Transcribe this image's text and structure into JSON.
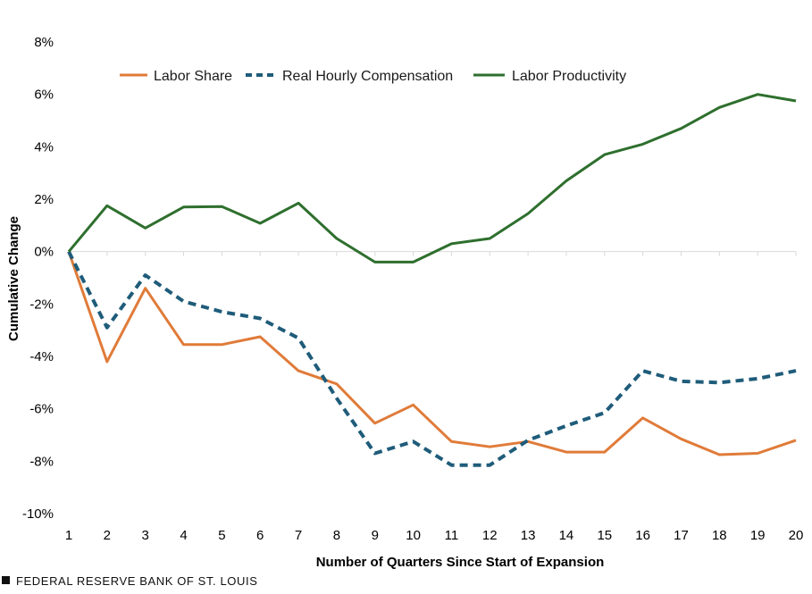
{
  "chart_data": {
    "type": "line",
    "title": "",
    "xlabel": "Number of Quarters Since Start of Expansion",
    "ylabel": "Cumulative Change",
    "categories": [
      1,
      2,
      3,
      4,
      5,
      6,
      7,
      8,
      9,
      10,
      11,
      12,
      13,
      14,
      15,
      16,
      17,
      18,
      19,
      20
    ],
    "x_tick_labels": [
      "1",
      "2",
      "3",
      "4",
      "5",
      "6",
      "7",
      "8",
      "9",
      "10",
      "11",
      "12",
      "13",
      "14",
      "15",
      "16",
      "17",
      "18",
      "19",
      "20"
    ],
    "ylim": [
      -10,
      8
    ],
    "y_ticks": [
      8,
      6,
      4,
      2,
      0,
      -2,
      -4,
      -6,
      -8,
      -10
    ],
    "y_tick_labels": [
      "8%",
      "6%",
      "4%",
      "2%",
      "0%",
      "-2%",
      "-4%",
      "-6%",
      "-8%",
      "-10%"
    ],
    "grid": false,
    "legend_position": "top-left",
    "series": [
      {
        "name": "Labor Share",
        "color": "#e07b39",
        "dash": "solid",
        "values": [
          0.0,
          -4.2,
          -1.4,
          -3.55,
          -3.55,
          -3.25,
          -4.55,
          -5.05,
          -6.55,
          -5.85,
          -7.25,
          -7.45,
          -7.25,
          -7.65,
          -7.65,
          -6.35,
          -7.15,
          -7.75,
          -7.7,
          -7.2
        ]
      },
      {
        "name": "Real Hourly Compensation",
        "color": "#1f5c7a",
        "dash": "dashed",
        "values": [
          0.0,
          -2.9,
          -0.9,
          -1.9,
          -2.3,
          -2.55,
          -3.3,
          -5.6,
          -7.7,
          -7.25,
          -8.15,
          -8.15,
          -7.2,
          -6.65,
          -6.15,
          -4.55,
          -4.95,
          -5.0,
          -4.85,
          -4.55
        ]
      },
      {
        "name": "Labor Productivity",
        "color": "#2e6f2e",
        "dash": "solid",
        "values": [
          0.0,
          1.75,
          0.9,
          1.7,
          1.72,
          1.08,
          1.85,
          0.5,
          -0.4,
          -0.4,
          0.3,
          0.5,
          1.45,
          2.7,
          3.7,
          4.1,
          4.7,
          5.5,
          6.0,
          5.75
        ]
      }
    ]
  },
  "footer": {
    "source": "FEDERAL RESERVE BANK OF ST. LOUIS"
  }
}
